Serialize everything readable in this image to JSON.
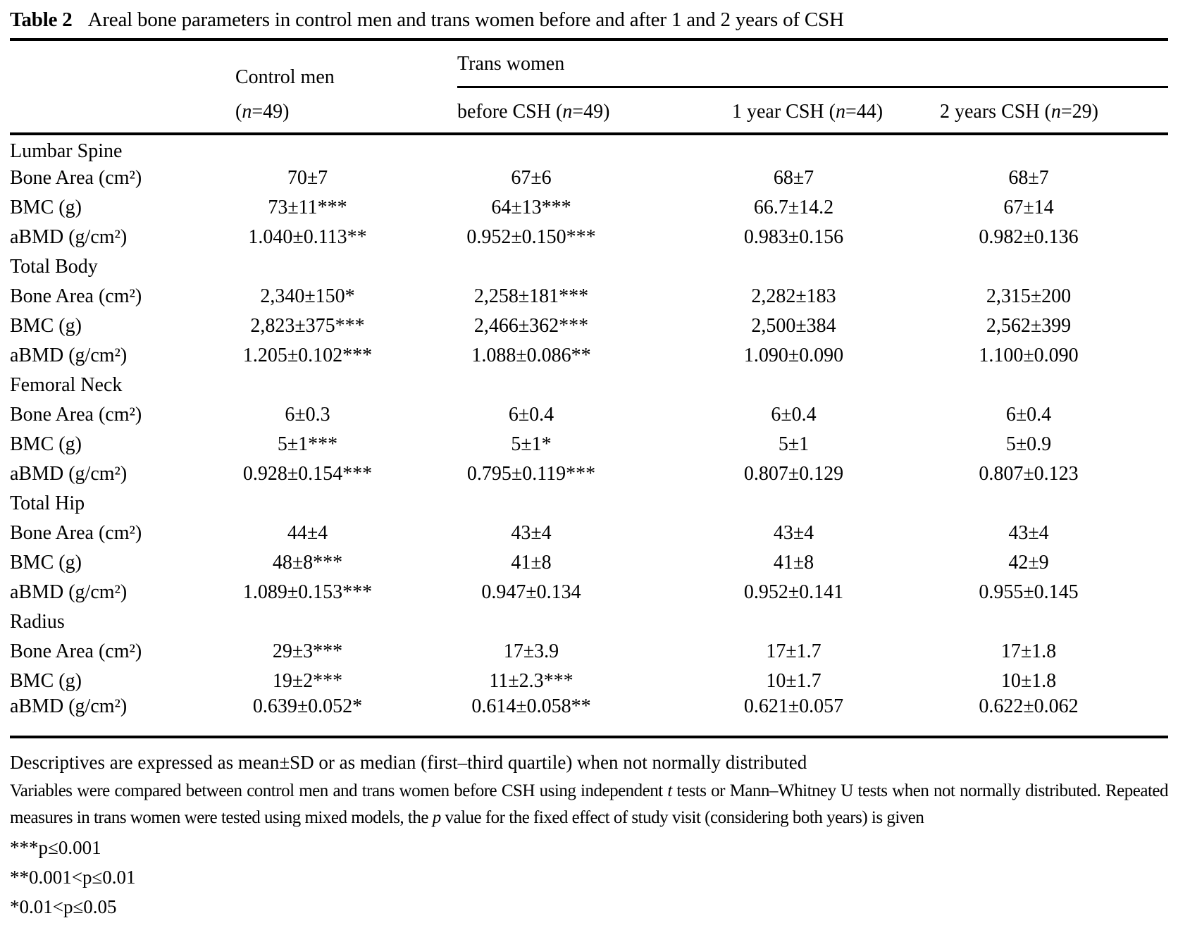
{
  "title": {
    "label": "Table 2",
    "text": "Areal bone parameters in control men and trans women before and after 1 and 2 years of CSH"
  },
  "header": {
    "control_men": "Control men",
    "trans_women": "Trans women",
    "sub": [
      {
        "pre": "(",
        "n": "n",
        "post": "=49)"
      },
      {
        "pre": "before CSH (",
        "n": "n",
        "post": "=49)"
      },
      {
        "pre": "1 year CSH (",
        "n": "n",
        "post": "=44)"
      },
      {
        "pre": "2 years CSH (",
        "n": "n",
        "post": "=29)"
      }
    ]
  },
  "sections": [
    {
      "name": "Lumbar Spine",
      "rows": [
        {
          "label": "Bone Area (cm²)",
          "values": [
            "70±7",
            "67±6",
            "68±7",
            "68±7"
          ]
        },
        {
          "label": "BMC (g)",
          "values": [
            "73±11***",
            "64±13***",
            "66.7±14.2",
            "67±14"
          ]
        },
        {
          "label": "aBMD (g/cm²)",
          "values": [
            "1.040±0.113**",
            "0.952±0.150***",
            "0.983±0.156",
            "0.982±0.136"
          ]
        }
      ]
    },
    {
      "name": "Total Body",
      "rows": [
        {
          "label": "Bone Area (cm²)",
          "values": [
            "2,340±150*",
            "2,258±181***",
            "2,282±183",
            "2,315±200"
          ]
        },
        {
          "label": "BMC (g)",
          "values": [
            "2,823±375***",
            "2,466±362***",
            "2,500±384",
            "2,562±399"
          ]
        },
        {
          "label": "aBMD (g/cm²)",
          "values": [
            "1.205±0.102***",
            "1.088±0.086**",
            "1.090±0.090",
            "1.100±0.090"
          ]
        }
      ]
    },
    {
      "name": "Femoral Neck",
      "rows": [
        {
          "label": "Bone Area (cm²)",
          "values": [
            "6±0.3",
            "6±0.4",
            "6±0.4",
            "6±0.4"
          ]
        },
        {
          "label": "BMC (g)",
          "values": [
            "5±1***",
            "5±1*",
            "5±1",
            "5±0.9"
          ]
        },
        {
          "label": "aBMD (g/cm²)",
          "values": [
            "0.928±0.154***",
            "0.795±0.119***",
            "0.807±0.129",
            "0.807±0.123"
          ]
        }
      ]
    },
    {
      "name": "Total Hip",
      "rows": [
        {
          "label": "Bone Area (cm²)",
          "values": [
            "44±4",
            "43±4",
            "43±4",
            "43±4"
          ]
        },
        {
          "label": "BMC (g)",
          "values": [
            "48±8***",
            "41±8",
            "41±8",
            "42±9"
          ]
        },
        {
          "label": "aBMD (g/cm²)",
          "values": [
            "1.089±0.153***",
            "0.947±0.134",
            "0.952±0.141",
            "0.955±0.145"
          ]
        }
      ]
    },
    {
      "name": "Radius",
      "rows": [
        {
          "label": "Bone Area (cm²)",
          "values": [
            "29±3***",
            "17±3.9",
            "17±1.7",
            "17±1.8"
          ]
        },
        {
          "label": "BMC (g)",
          "values": [
            "19±2***",
            "11±2.3***",
            "10±1.7",
            "10±1.8"
          ]
        },
        {
          "label": "aBMD (g/cm²)",
          "values": [
            "0.639±0.052*",
            "0.614±0.058**",
            "0.621±0.057",
            "0.622±0.062"
          ]
        }
      ]
    }
  ],
  "footnotes": {
    "descriptives": "Descriptives are expressed as mean±SD or as median (first–third quartile) when not normally distributed",
    "methods": [
      "Variables were compared between control men and trans women before CSH using independent ",
      "t",
      " tests or Mann–Whitney U tests when not normally distributed. Repeated measures in trans women were tested using mixed models, the ",
      "p",
      " value for the fixed effect of study visit (considering both years) is given"
    ],
    "sig": [
      "***p≤0.001",
      "**0.001<p≤0.01",
      "*0.01<p≤0.05"
    ]
  },
  "colors": {
    "text": "#000000",
    "background": "#ffffff",
    "rule": "#000000"
  }
}
